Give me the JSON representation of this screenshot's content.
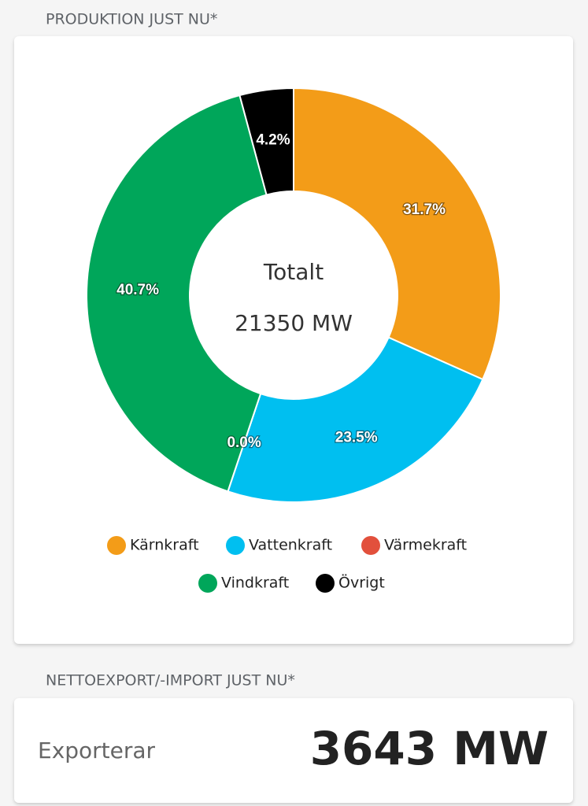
{
  "production_title": "PRODUKTION JUST NU*",
  "chart_data": {
    "type": "donut",
    "categories": [
      "Kärnkraft",
      "Vattenkraft",
      "Värmekraft",
      "Vindkraft",
      "Övrigt"
    ],
    "values": [
      31.7,
      23.5,
      0.0,
      40.7,
      4.2
    ],
    "value_labels": [
      "31.7%",
      "23.5%",
      "0.0%",
      "40.7%",
      "4.2%"
    ],
    "colors": [
      "#f39c18",
      "#00bff0",
      "#e2503c",
      "#00a65a",
      "#000000"
    ],
    "center_title": "Totalt",
    "center_value": "21350 MW"
  },
  "net_title": "NETTOEXPORT/-IMPORT JUST NU*",
  "net_label": "Exporterar",
  "net_value": "3643 MW"
}
